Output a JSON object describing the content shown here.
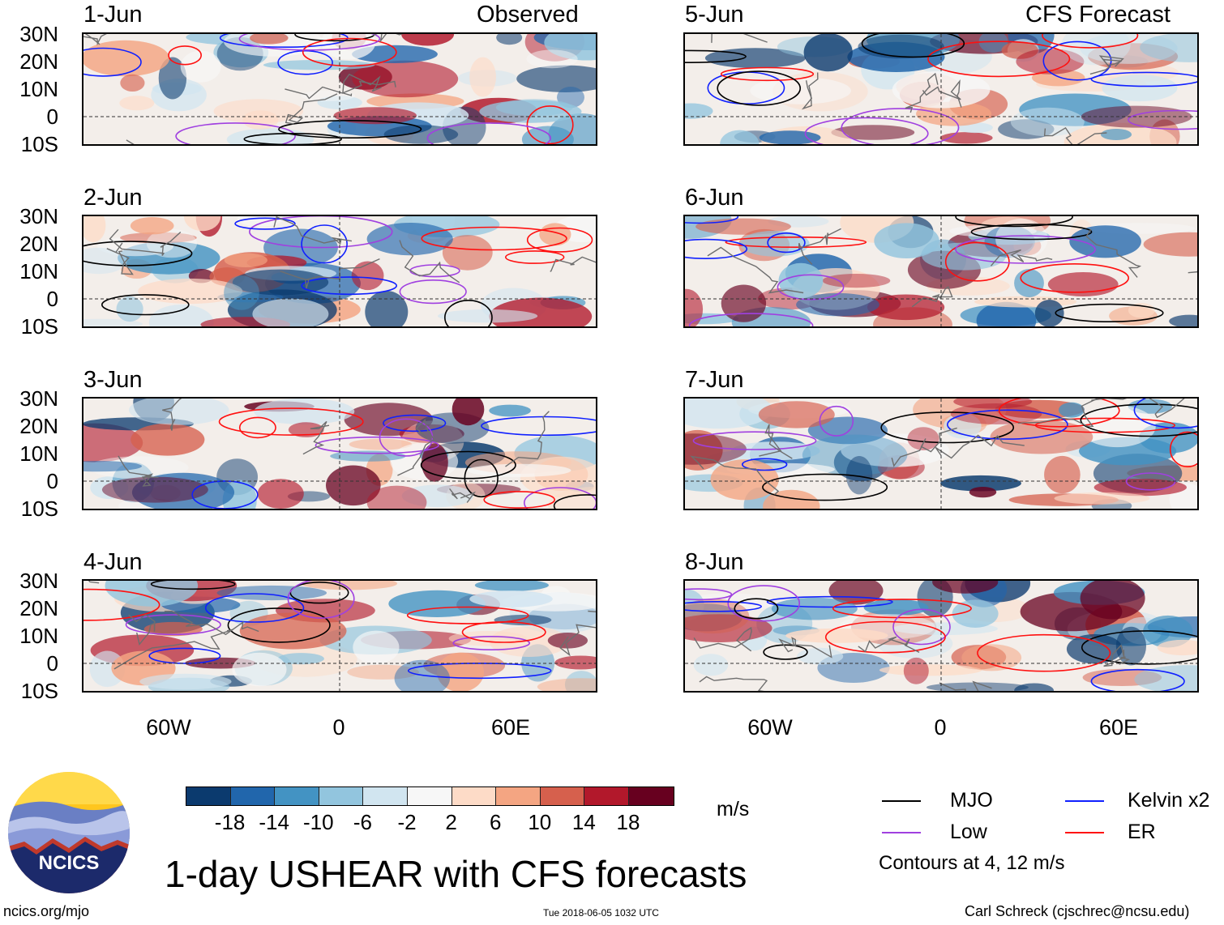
{
  "panels": {
    "observed_label": "Observed",
    "forecast_label": "CFS Forecast",
    "left": [
      "1-Jun",
      "2-Jun",
      "3-Jun",
      "4-Jun"
    ],
    "right": [
      "5-Jun",
      "6-Jun",
      "7-Jun",
      "8-Jun"
    ]
  },
  "axes": {
    "lat_ticks": [
      "30N",
      "20N",
      "10N",
      "0",
      "10S"
    ],
    "lon_ticks": [
      "60W",
      "0",
      "60E"
    ]
  },
  "colorbar": {
    "ticks": [
      "-18",
      "-14",
      "-10",
      "-6",
      "-2",
      "2",
      "6",
      "10",
      "14",
      "18"
    ],
    "colors": [
      "#0b3a6e",
      "#2166ac",
      "#4393c3",
      "#92c5de",
      "#d1e5f0",
      "#f7f7f7",
      "#fddbc7",
      "#f4a582",
      "#d6604d",
      "#b2182b",
      "#67001f"
    ],
    "units": "m/s"
  },
  "title": "1-day USHEAR with CFS forecasts",
  "legend": {
    "items": [
      {
        "label": "MJO",
        "color": "#000000"
      },
      {
        "label": "Kelvin x2",
        "color": "#1020ff"
      },
      {
        "label": "Low",
        "color": "#a040e0"
      },
      {
        "label": "ER",
        "color": "#ff1010"
      }
    ],
    "note": "Contours at 4, 12 m/s"
  },
  "logo_text": "NCICS",
  "footer": {
    "left": "ncics.org/mjo",
    "center": "Tue 2018-06-05 1032 UTC",
    "right": "Carl Schreck (cjschrec@ncsu.edu)"
  }
}
